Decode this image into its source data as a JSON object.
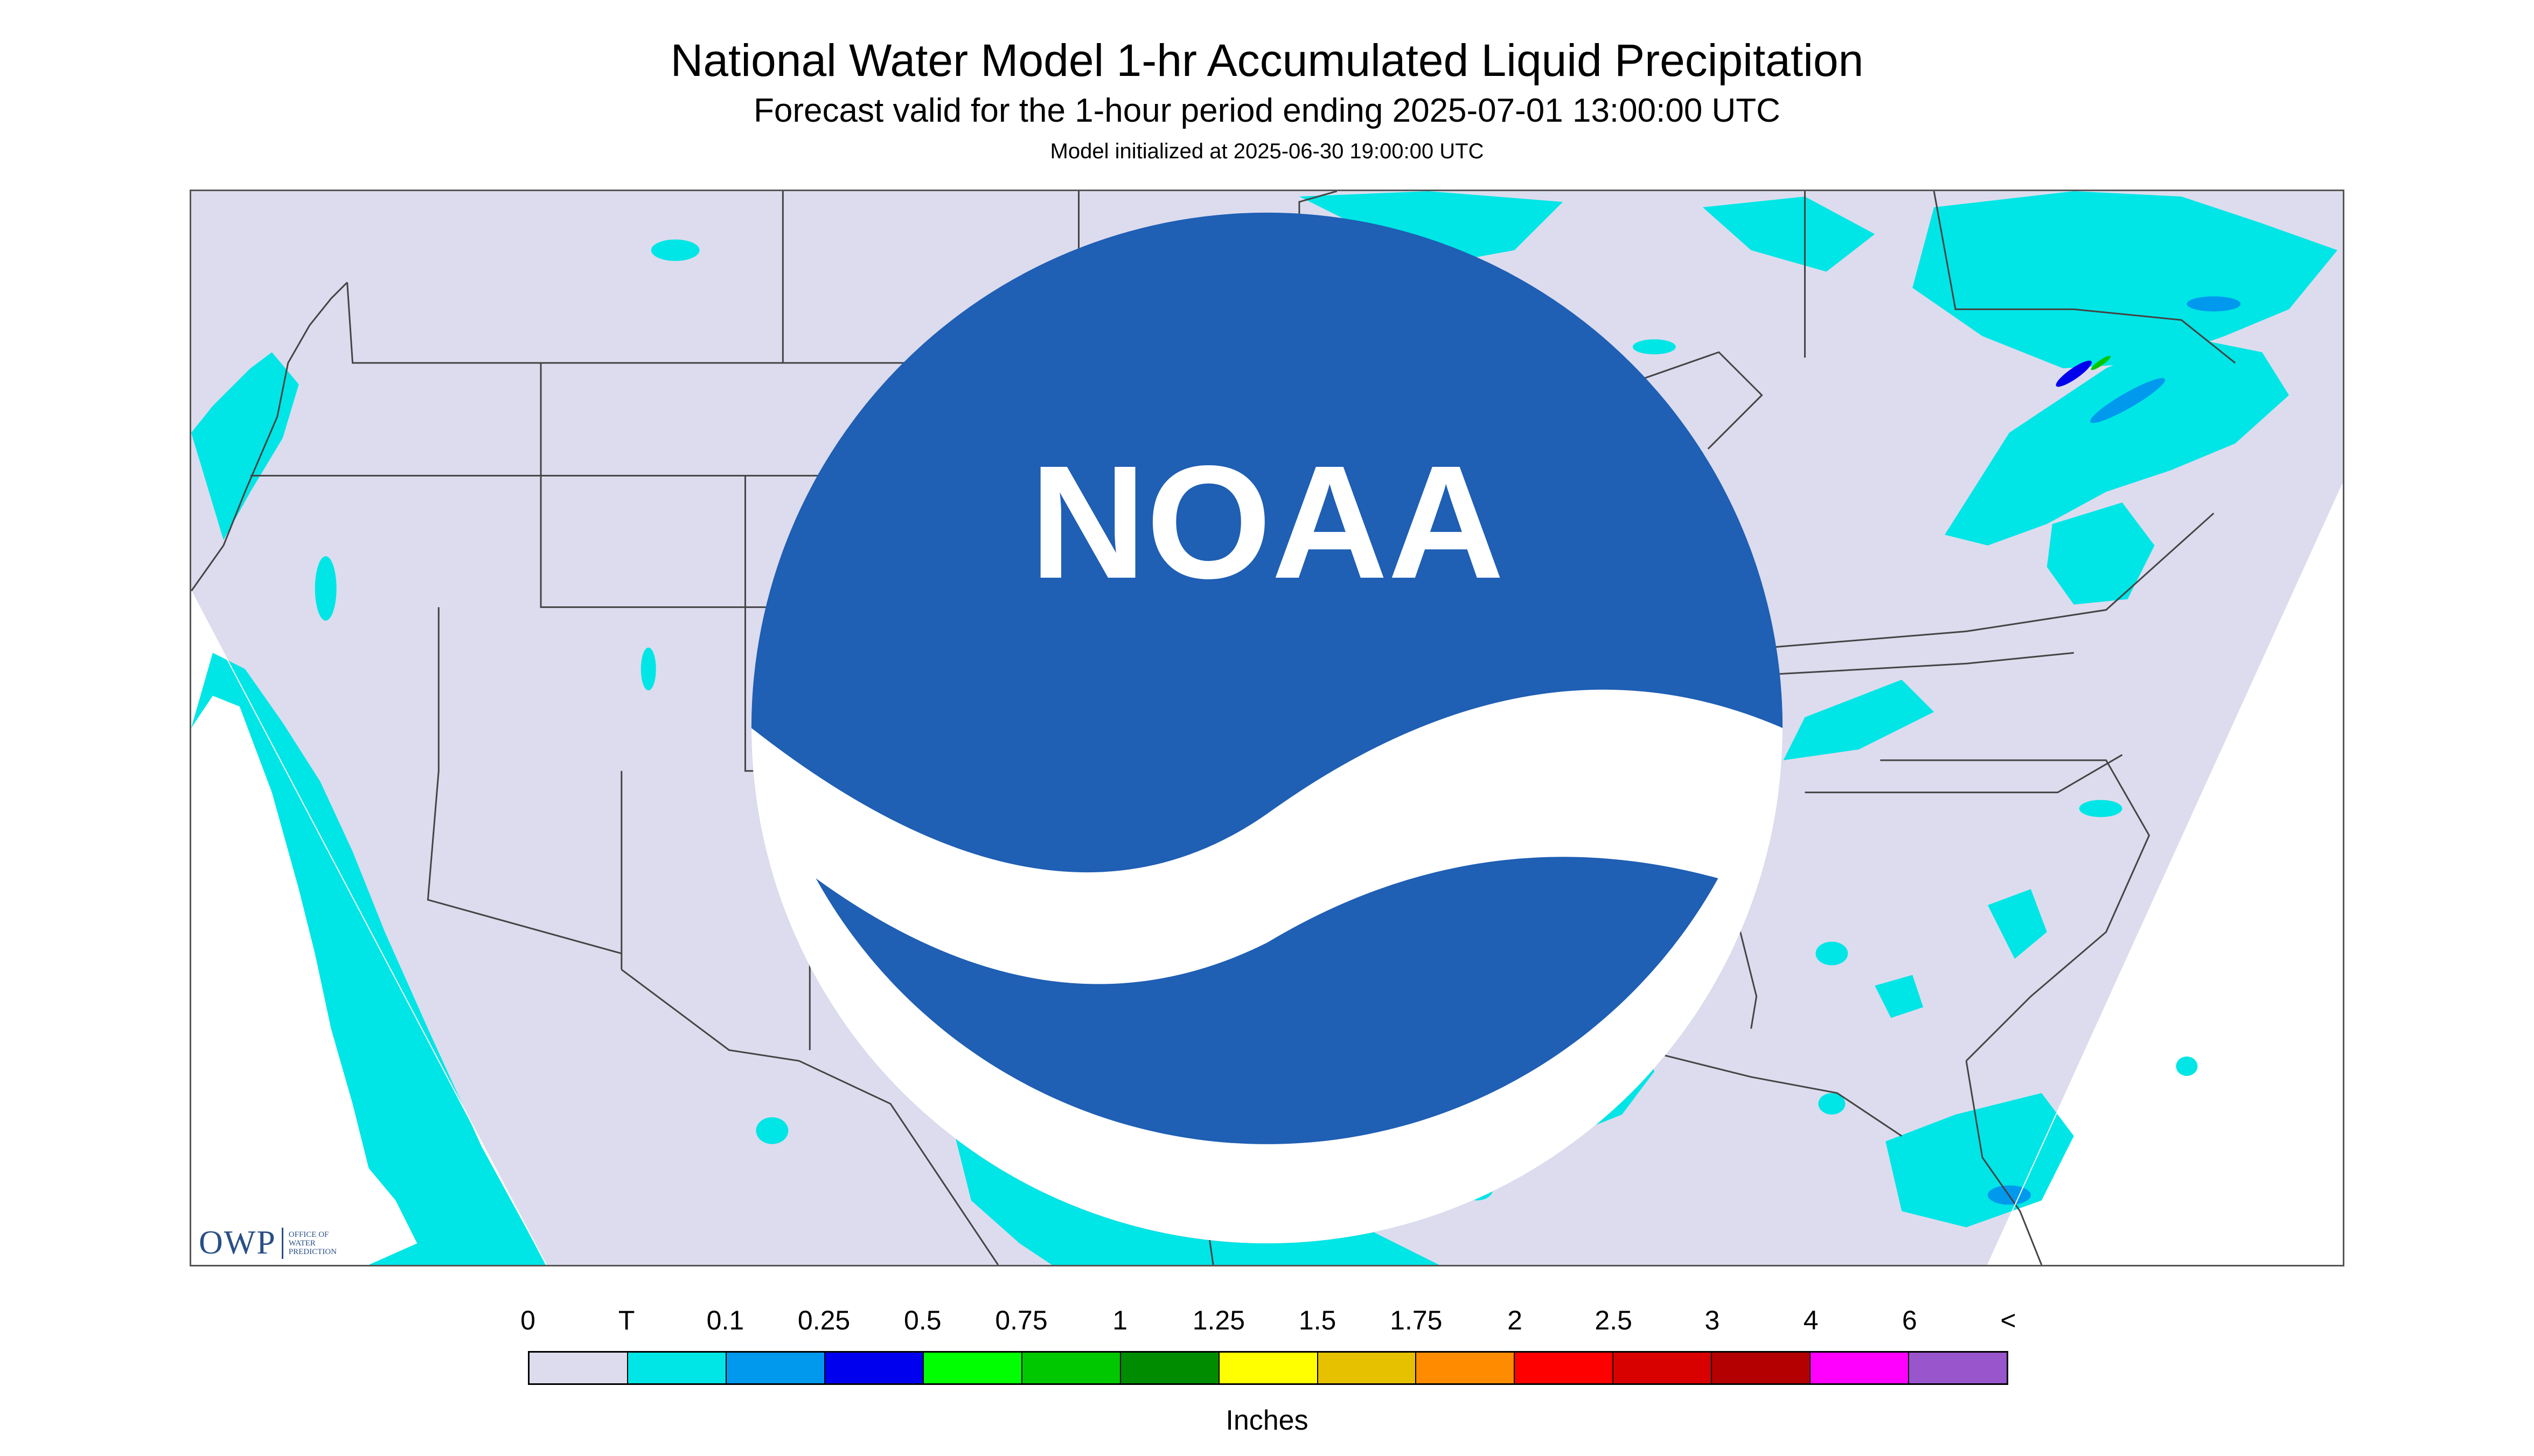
{
  "header": {
    "title": "National Water Model 1-hr Accumulated Liquid Precipitation",
    "subtitle": "Forecast valid for the 1-hour period ending 2025-07-01 13:00:00 UTC",
    "init": "Model initialized at 2025-06-30 19:00:00 UTC"
  },
  "map": {
    "domain_color": "#dcdcee",
    "outside_color": "#ffffff",
    "boundary_color": "#444444"
  },
  "logos": {
    "owp_mark": "OWP",
    "owp_text": [
      "OFFICE OF",
      "WATER",
      "PREDICTION"
    ],
    "noaa_text": "NOAA"
  },
  "legend": {
    "labels": [
      "0",
      "T",
      "0.1",
      "0.25",
      "0.5",
      "0.75",
      "1",
      "1.25",
      "1.5",
      "1.75",
      "2",
      "2.5",
      "3",
      "4",
      "6",
      "<"
    ],
    "colors": [
      "#dcdcee",
      "#00e5e5",
      "#0099ee",
      "#0000ee",
      "#00ff00",
      "#00c800",
      "#008c00",
      "#ffff00",
      "#e5c100",
      "#ff8c00",
      "#ff0000",
      "#d90000",
      "#b40000",
      "#ff00ff",
      "#9955cc"
    ],
    "units": "Inches"
  }
}
